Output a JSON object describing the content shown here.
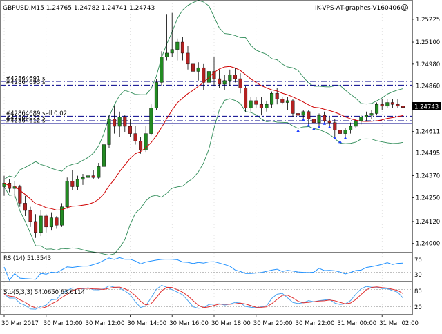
{
  "header": {
    "symbol_text": "GBPUSD,M15  1.24765 1.24782 1.24741 1.24743",
    "watermark": "IK-VPS-AT-graphes-V160406"
  },
  "main_chart": {
    "scale": [
      {
        "price": 1.25225,
        "text": "1.25225"
      },
      {
        "price": 1.251,
        "text": "1.25100"
      },
      {
        "price": 1.2498,
        "text": "1.24980"
      },
      {
        "price": 1.2486,
        "text": "1.24860"
      },
      {
        "price": 1.24611,
        "text": "1.24611"
      },
      {
        "price": 1.24495,
        "text": "1.24495"
      },
      {
        "price": 1.2437,
        "text": "1.24370"
      },
      {
        "price": 1.2425,
        "text": "1.24250"
      },
      {
        "price": 1.2412,
        "text": "1.24120"
      },
      {
        "price": 1.24,
        "text": "1.24000"
      }
    ],
    "current_price": {
      "price": 1.24743,
      "text": "1.24743"
    },
    "price_range": [
      1.23965,
      1.253
    ],
    "order_lines": [
      {
        "price": 1.24865,
        "text": "#42864693 s",
        "style": "dashdot"
      },
      {
        "price": 1.24885,
        "text": "#42864691 s",
        "style": "dashdot"
      },
      {
        "price": 1.24695,
        "text": "#42864689 sell 0.02",
        "style": "dashdot"
      },
      {
        "price": 1.2467,
        "text": "#42864622 s",
        "style": "dashdot"
      },
      {
        "price": 1.24655,
        "text": "#42864612 s",
        "style": "solid"
      }
    ],
    "candles": [
      [
        1.2431,
        1.2437,
        1.2426,
        1.2433
      ],
      [
        1.2433,
        1.2435,
        1.2428,
        1.243
      ],
      [
        1.243,
        1.2434,
        1.2425,
        1.2431
      ],
      [
        1.2431,
        1.2432,
        1.242,
        1.2422
      ],
      [
        1.2422,
        1.2426,
        1.2415,
        1.2418
      ],
      [
        1.2418,
        1.242,
        1.2409,
        1.2412
      ],
      [
        1.2412,
        1.2416,
        1.2403,
        1.2406
      ],
      [
        1.2406,
        1.2418,
        1.2404,
        1.2415
      ],
      [
        1.2415,
        1.2416,
        1.2406,
        1.2409
      ],
      [
        1.2409,
        1.2417,
        1.2407,
        1.2414
      ],
      [
        1.2414,
        1.2415,
        1.2408,
        1.241
      ],
      [
        1.241,
        1.2422,
        1.2409,
        1.242
      ],
      [
        1.242,
        1.2436,
        1.2419,
        1.2434
      ],
      [
        1.2434,
        1.244,
        1.2429,
        1.2431
      ],
      [
        1.2431,
        1.2437,
        1.2429,
        1.2435
      ],
      [
        1.2435,
        1.2438,
        1.2432,
        1.2436
      ],
      [
        1.2436,
        1.244,
        1.2434,
        1.2437
      ],
      [
        1.2437,
        1.244,
        1.2435,
        1.2436
      ],
      [
        1.2436,
        1.2444,
        1.2435,
        1.2442
      ],
      [
        1.2442,
        1.2455,
        1.2441,
        1.2454
      ],
      [
        1.2454,
        1.247,
        1.2452,
        1.2468
      ],
      [
        1.2468,
        1.2475,
        1.246,
        1.2464
      ],
      [
        1.2464,
        1.2472,
        1.2458,
        1.2469
      ],
      [
        1.2469,
        1.247,
        1.2461,
        1.2464
      ],
      [
        1.2464,
        1.2468,
        1.2458,
        1.246
      ],
      [
        1.246,
        1.2464,
        1.2454,
        1.2456
      ],
      [
        1.2456,
        1.2458,
        1.2449,
        1.2451
      ],
      [
        1.2451,
        1.2464,
        1.245,
        1.246
      ],
      [
        1.246,
        1.2476,
        1.2459,
        1.2474
      ],
      [
        1.2474,
        1.249,
        1.2473,
        1.2488
      ],
      [
        1.2488,
        1.2505,
        1.2486,
        1.2502
      ],
      [
        1.2502,
        1.2525,
        1.25,
        1.2504
      ],
      [
        1.2504,
        1.2526,
        1.2502,
        1.2506
      ],
      [
        1.2506,
        1.2512,
        1.25,
        1.251
      ],
      [
        1.251,
        1.2513,
        1.25,
        1.2504
      ],
      [
        1.2504,
        1.2508,
        1.2495,
        1.2498
      ],
      [
        1.2498,
        1.25,
        1.2492,
        1.2494
      ],
      [
        1.2494,
        1.2499,
        1.2489,
        1.2496
      ],
      [
        1.2496,
        1.2498,
        1.2484,
        1.2488
      ],
      [
        1.2488,
        1.2497,
        1.2486,
        1.2494
      ],
      [
        1.2494,
        1.2502,
        1.2486,
        1.249
      ],
      [
        1.249,
        1.2495,
        1.2485,
        1.2487
      ],
      [
        1.2487,
        1.2492,
        1.2484,
        1.2489
      ],
      [
        1.2489,
        1.2495,
        1.2486,
        1.2492
      ],
      [
        1.2492,
        1.2496,
        1.2488,
        1.249
      ],
      [
        1.249,
        1.2493,
        1.2482,
        1.2485
      ],
      [
        1.2485,
        1.2486,
        1.2472,
        1.2474
      ],
      [
        1.2474,
        1.248,
        1.2472,
        1.2478
      ],
      [
        1.2478,
        1.248,
        1.2474,
        1.2476
      ],
      [
        1.2476,
        1.248,
        1.247,
        1.2474
      ],
      [
        1.2474,
        1.2478,
        1.2472,
        1.2476
      ],
      [
        1.2476,
        1.2483,
        1.2474,
        1.2482
      ],
      [
        1.2482,
        1.2485,
        1.2476,
        1.2479
      ],
      [
        1.2479,
        1.248,
        1.2476,
        1.2477
      ],
      [
        1.2477,
        1.248,
        1.2473,
        1.2478
      ],
      [
        1.2478,
        1.2479,
        1.2469,
        1.2471
      ],
      [
        1.2471,
        1.2474,
        1.2462,
        1.247
      ],
      [
        1.247,
        1.2473,
        1.2468,
        1.2472
      ],
      [
        1.2472,
        1.2473,
        1.2465,
        1.2468
      ],
      [
        1.2468,
        1.247,
        1.2463,
        1.2466
      ],
      [
        1.2466,
        1.2471,
        1.2464,
        1.247
      ],
      [
        1.247,
        1.2472,
        1.2466,
        1.2467
      ],
      [
        1.2467,
        1.2469,
        1.2464,
        1.2466
      ],
      [
        1.2466,
        1.2468,
        1.2458,
        1.2462
      ],
      [
        1.2462,
        1.2465,
        1.2456,
        1.246
      ],
      [
        1.246,
        1.2463,
        1.2458,
        1.2462
      ],
      [
        1.2462,
        1.2466,
        1.246,
        1.2464
      ],
      [
        1.2464,
        1.2468,
        1.2463,
        1.2467
      ],
      [
        1.2467,
        1.247,
        1.2465,
        1.2469
      ],
      [
        1.2469,
        1.2472,
        1.2467,
        1.247
      ],
      [
        1.247,
        1.2473,
        1.2468,
        1.2471
      ],
      [
        1.2471,
        1.2477,
        1.247,
        1.2476
      ],
      [
        1.2476,
        1.2479,
        1.2473,
        1.2475
      ],
      [
        1.2475,
        1.2479,
        1.2474,
        1.2477
      ],
      [
        1.2477,
        1.2479,
        1.2474,
        1.2476
      ],
      [
        1.2476,
        1.2479,
        1.2474,
        1.2475
      ],
      [
        1.2475,
        1.24782,
        1.24741,
        1.24743
      ]
    ],
    "colors": {
      "bull": "#228B22",
      "bear": "#B22222",
      "ma_red": "#D00000",
      "bands": "#2E8B57",
      "order_line": "#00008B",
      "grid": "#C8C8C8"
    }
  },
  "rsi": {
    "label": "RSI(14) 51.3543",
    "levels": [
      {
        "value": 70,
        "text": "70"
      },
      {
        "value": 30,
        "text": "30"
      }
    ],
    "color": "#1E90FF"
  },
  "stoch": {
    "label": "Sto(5,3,3) 54.0650 63.6114",
    "levels": [
      {
        "value": 80,
        "text": "80"
      },
      {
        "value": 20,
        "text": "20"
      }
    ],
    "main_color": "#4AA3F0",
    "signal_color": "#E03030"
  },
  "time_axis": [
    {
      "index": 0,
      "text": "30 Mar 2017"
    },
    {
      "index": 8,
      "text": "30 Mar 10:00"
    },
    {
      "index": 16,
      "text": "30 Mar 12:00"
    },
    {
      "index": 24,
      "text": "30 Mar 14:00"
    },
    {
      "index": 32,
      "text": "30 Mar 16:00"
    },
    {
      "index": 40,
      "text": "30 Mar 18:00"
    },
    {
      "index": 48,
      "text": "30 Mar 20:00"
    },
    {
      "index": 56,
      "text": "30 Mar 22:00"
    },
    {
      "index": 64,
      "text": "31 Mar 00:00"
    },
    {
      "index": 72,
      "text": "31 Mar 02:00"
    }
  ]
}
